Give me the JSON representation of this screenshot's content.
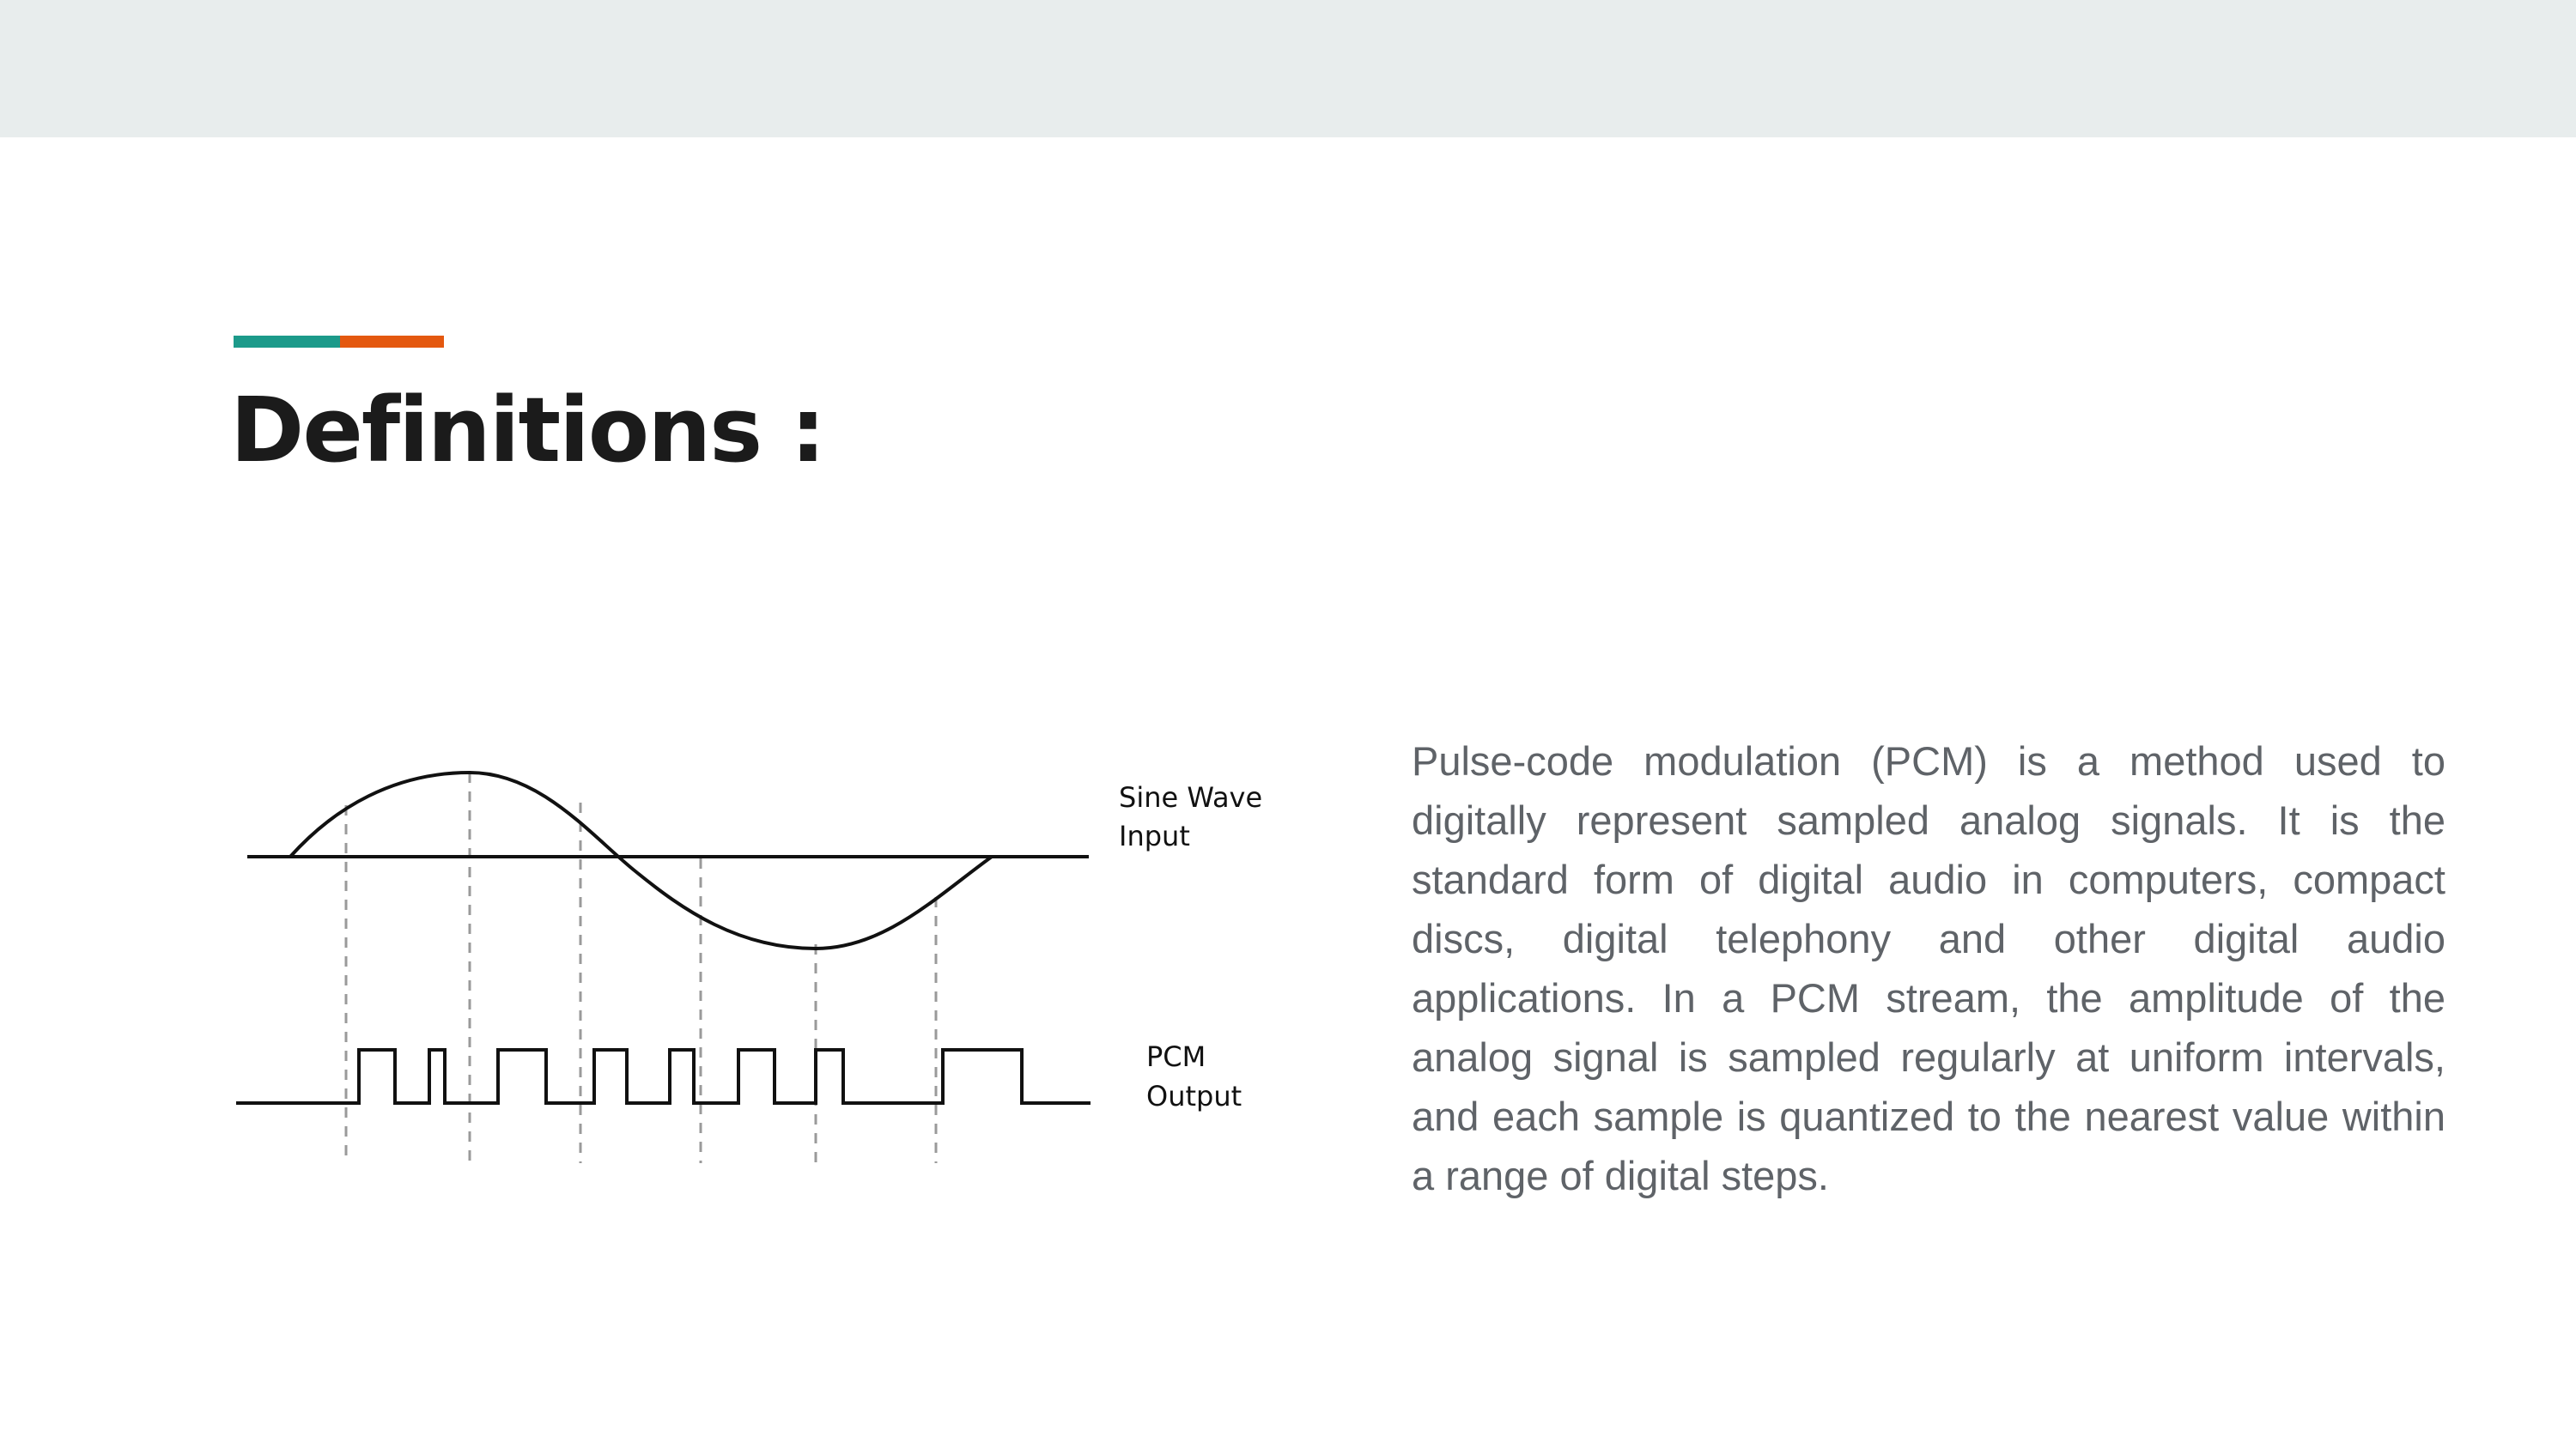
{
  "slide": {
    "title": "Definitions :",
    "accent_colors": {
      "teal": "#1c9a8a",
      "orange": "#e4580f"
    },
    "band_color": "#e8eded"
  },
  "figure": {
    "sine_label_line1": "Sine Wave",
    "sine_label_line2": "Input",
    "pcm_label_line1": "PCM",
    "pcm_label_line2": "Output"
  },
  "body": {
    "paragraph": "Pulse-code modulation (PCM) is a method used to digitally represent sampled analog signals. It is the standard form of digital audio in computers, compact discs, digital telephony and other digital audio applications. In a PCM stream, the amplitude of the analog signal is sampled regularly at uniform intervals, and each sample is quantized to the nearest value within a range of digital steps."
  }
}
